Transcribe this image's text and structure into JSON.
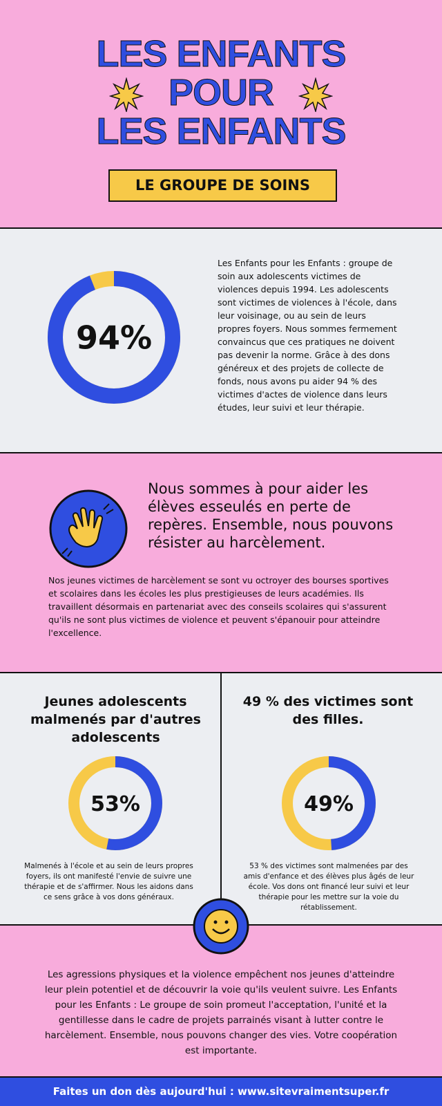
{
  "header": {
    "title_lines": [
      "LES ENFANTS",
      "POUR",
      "LES ENFANTS"
    ],
    "badge": "LE GROUPE DE SOINS"
  },
  "intro": {
    "donut": {
      "value": 94,
      "label": "94%"
    },
    "text": "Les Enfants pour les Enfants : groupe de soin aux adolescents victimes de violences depuis 1994. Les adolescents sont victimes de violences à l'école, dans leur voisinage, ou au sein de leurs propres foyers. Nous sommes fermement convaincus que ces pratiques ne doivent pas devenir la norme. Grâce à des dons généreux et des projets de collecte de fonds, nous avons pu aider 94 % des victimes d'actes de violence dans leurs études, leur suivi et leur thérapie."
  },
  "mission": {
    "headline": "Nous sommes à pour aider les élèves esseulés en perte de repères. Ensemble, nous pouvons résister au harcèlement.",
    "text": "Nos jeunes victimes de harcèlement se sont vu octroyer des bourses sportives et scolaires dans les écoles les plus prestigieuses de leurs académies. Ils travaillent désormais en partenariat avec des conseils scolaires qui s'assurent qu'ils ne sont plus victimes de violence et peuvent s'épanouir pour atteindre l'excellence."
  },
  "stats": [
    {
      "heading": "Jeunes adolescents malmenés par d'autres adolescents",
      "donut": {
        "value": 53,
        "label": "53%"
      },
      "text": "Malmenés à l'école et au sein de leurs propres foyers, ils ont manifesté l'envie de suivre une thérapie et de s'affirmer. Nous les aidons dans ce sens grâce à vos dons généraux."
    },
    {
      "heading": "49 % des victimes sont des filles.",
      "donut": {
        "value": 49,
        "label": "49%"
      },
      "text": "53 % des victimes sont malmenées par des amis d'enfance et des élèves plus âgés de leur école. Vos dons ont financé leur suivi et leur thérapie pour les mettre sur la voie du rétablissement."
    }
  ],
  "closing": {
    "text": "Les agressions physiques et la violence empêchent nos jeunes d'atteindre leur plein potentiel et de découvrir la voie qu'ils veulent suivre. Les Enfants pour les Enfants : Le groupe de soin promeut l'acceptation, l'unité et la gentillesse dans le cadre de projets parrainés visant à lutter contre le harcèlement. Ensemble, nous pouvons changer des vies. Votre coopération est importante."
  },
  "footer": {
    "text": "Faites un don dès aujourd'hui : www.sitevraimentsuper.fr"
  }
}
